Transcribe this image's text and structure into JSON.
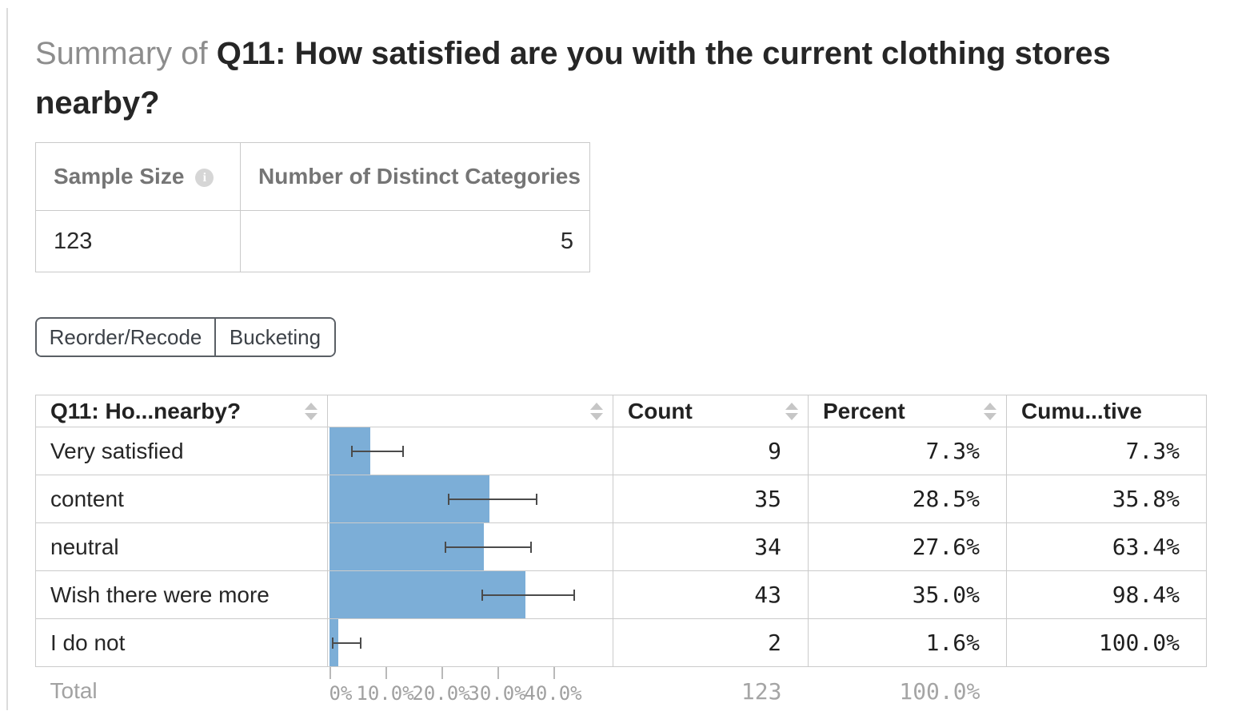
{
  "title": {
    "prefix": "Summary of ",
    "main": "Q11: How satisfied are you with the current clothing stores nearby?"
  },
  "summary_table": {
    "headers": {
      "sample_size": "Sample Size",
      "distinct_categories": "Number of Distinct Categories"
    },
    "icons": {
      "sample_size_info": "info-icon"
    },
    "values": {
      "sample_size": "123",
      "distinct_categories": "5"
    }
  },
  "buttons": {
    "reorder_recode": "Reorder/Recode",
    "bucketing": "Bucketing"
  },
  "table": {
    "headers": {
      "question": "Q11: Ho...nearby?",
      "chart": "",
      "count": "Count",
      "percent": "Percent",
      "cumulative": "Cumu...tive"
    },
    "rows": [
      {
        "label": "Very satisfied",
        "count": "9",
        "percent": "7.3%",
        "cumulative": "7.3%"
      },
      {
        "label": "content",
        "count": "35",
        "percent": "28.5%",
        "cumulative": "35.8%"
      },
      {
        "label": "neutral",
        "count": "34",
        "percent": "27.6%",
        "cumulative": "63.4%"
      },
      {
        "label": "Wish there were more",
        "count": "43",
        "percent": "35.0%",
        "cumulative": "98.4%"
      },
      {
        "label": "I do not",
        "count": "2",
        "percent": "1.6%",
        "cumulative": "100.0%"
      }
    ],
    "total": {
      "label": "Total",
      "count": "123",
      "percent": "100.0%"
    }
  },
  "axis": {
    "tick_labels": [
      "0.0%",
      "10.0%",
      "20.0%",
      "30.0%",
      "40.0%"
    ],
    "tick_values": [
      0,
      10,
      20,
      30,
      40
    ]
  },
  "chart_data": {
    "type": "bar",
    "orientation": "horizontal",
    "title": "Q11: How satisfied are you with the current clothing stores nearby?",
    "categories": [
      "Very satisfied",
      "content",
      "neutral",
      "Wish there were more",
      "I do not"
    ],
    "values": [
      7.3,
      28.5,
      27.6,
      35.0,
      1.6
    ],
    "counts": [
      9,
      35,
      34,
      43,
      2
    ],
    "cumulative": [
      7.3,
      35.8,
      63.4,
      98.4,
      100.0
    ],
    "error_low": [
      3.9,
      21.2,
      20.5,
      27.1,
      0.4
    ],
    "error_high": [
      13.3,
      37.1,
      36.2,
      43.9,
      5.7
    ],
    "sample_size": 123,
    "unit": "%",
    "xlim": [
      0,
      50
    ],
    "x_ticks": [
      0,
      10,
      20,
      30,
      40
    ],
    "grid": false,
    "legend": false
  },
  "colors": {
    "bar": "#7caed7",
    "whisker": "#4b4b4b",
    "muted_text": "#a2a2a2",
    "header_gray": "#757575",
    "border": "#cbcbcb"
  }
}
